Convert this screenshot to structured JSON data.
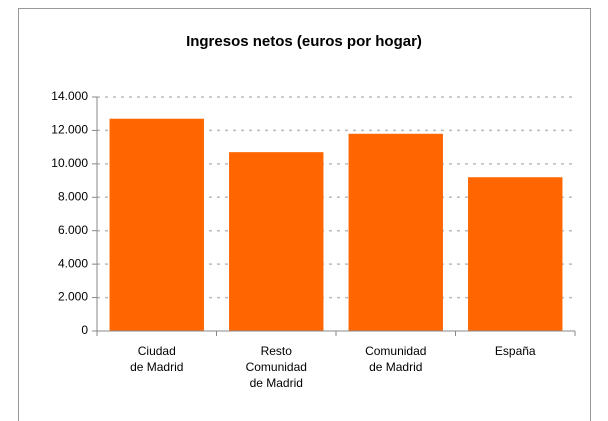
{
  "chart_data": {
    "type": "bar",
    "title": "Ingresos netos (euros por hogar)",
    "categories": [
      "Ciudad\nde Madrid",
      "Resto\nComunidad\nde Madrid",
      "Comunidad\nde Madrid",
      "España"
    ],
    "values": [
      12700,
      10700,
      11800,
      9200
    ],
    "color": "#ff6600",
    "ylim": [
      0,
      14000
    ],
    "yticks": [
      0,
      {
        "value": 2000,
        "label": "2.000"
      },
      {
        "value": 4000,
        "label": "4.000"
      },
      {
        "value": 6000,
        "label": "6.000"
      },
      {
        "value": 8000,
        "label": "8.000"
      },
      {
        "value": 10000,
        "label": "10.000"
      },
      {
        "value": 12000,
        "label": "12.000"
      },
      {
        "value": 14000,
        "label": "14.000"
      }
    ],
    "grid": true
  }
}
